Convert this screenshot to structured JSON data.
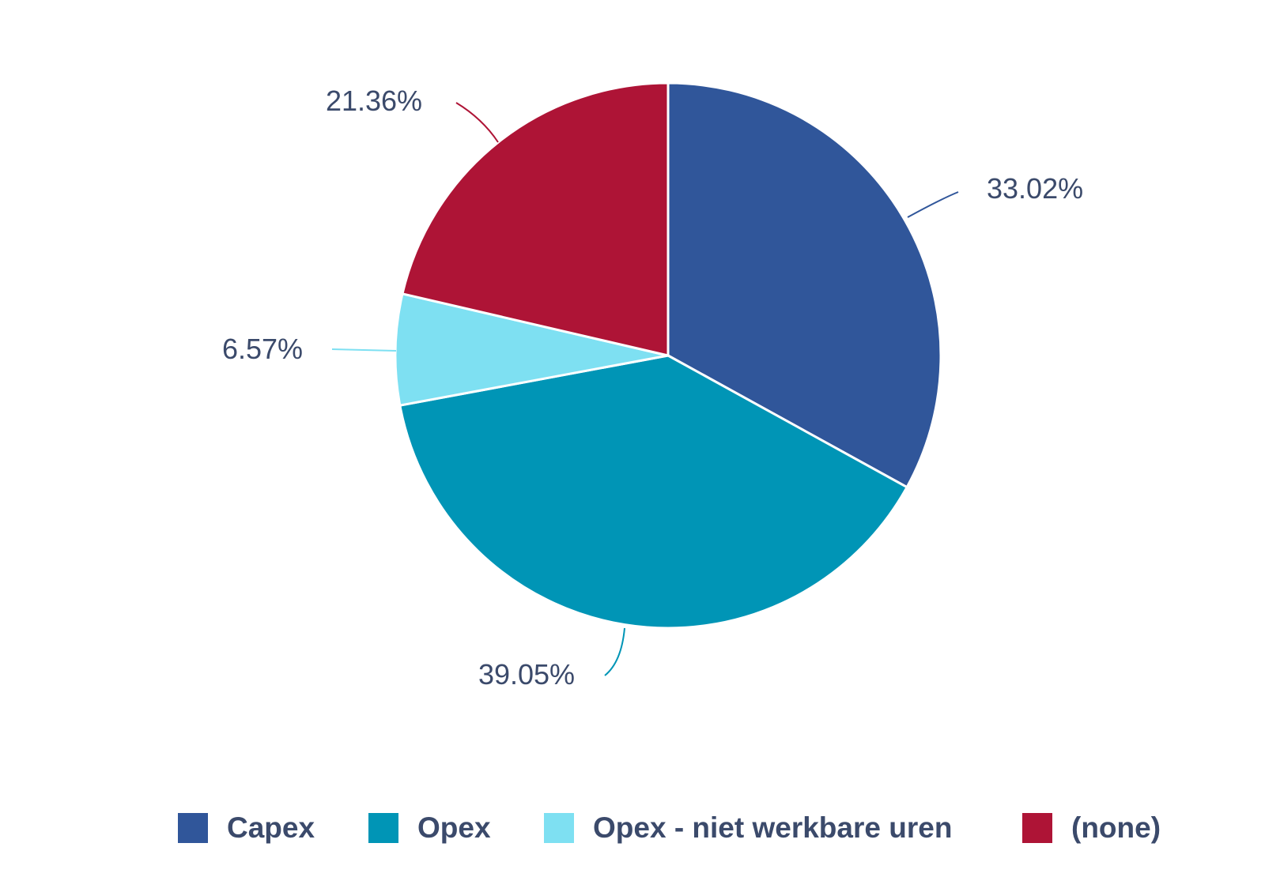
{
  "chart_data": {
    "type": "pie",
    "slices": [
      {
        "label": "Capex",
        "value": 33.02,
        "display": "33.02%",
        "color": "#30569a"
      },
      {
        "label": "Opex",
        "value": 39.05,
        "display": "39.05%",
        "color": "#0095b6"
      },
      {
        "label": "Opex - niet werkbare uren",
        "value": 6.57,
        "display": "6.57%",
        "color": "#7ee0f2"
      },
      {
        "label": "(none)",
        "value": 21.36,
        "display": "21.36%",
        "color": "#ae1436"
      }
    ],
    "start": "12 o'clock",
    "direction": "clockwise",
    "legend_position": "bottom"
  },
  "legend": {
    "items": [
      {
        "label": "Capex",
        "color": "#30569a"
      },
      {
        "label": "Opex",
        "color": "#0095b6"
      },
      {
        "label": "Opex - niet werkbare uren",
        "color": "#7ee0f2"
      },
      {
        "label": "(none)",
        "color": "#ae1436"
      }
    ]
  }
}
